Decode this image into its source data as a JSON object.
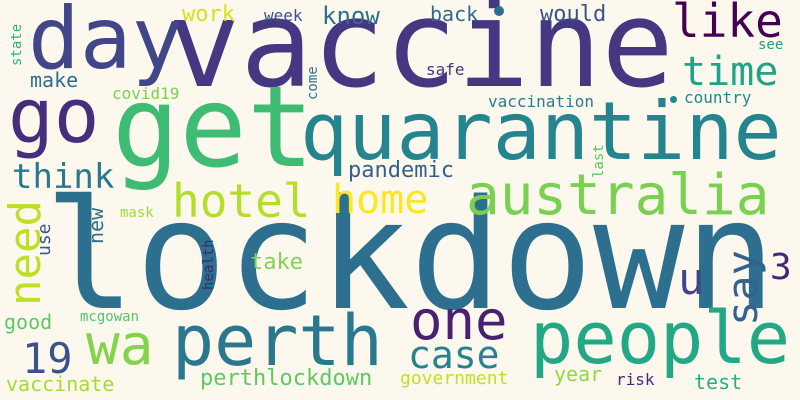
{
  "words": [
    {
      "text": "lockdown",
      "color": "#2c6f8e"
    },
    {
      "text": "vaccine",
      "color": "#453781"
    },
    {
      "text": "get",
      "color": "#3fbc73"
    },
    {
      "text": "quarantine",
      "color": "#25858e"
    },
    {
      "text": "day",
      "color": "#404688"
    },
    {
      "text": "go",
      "color": "#472d7b"
    },
    {
      "text": "australia",
      "color": "#7ad151"
    },
    {
      "text": "people",
      "color": "#22a884"
    },
    {
      "text": "perth",
      "color": "#2a788e"
    },
    {
      "text": "wa",
      "color": "#84d44b"
    },
    {
      "text": "one",
      "color": "#482173"
    },
    {
      "text": "hotel",
      "color": "#b5de2b"
    },
    {
      "text": "home",
      "color": "#fde725"
    },
    {
      "text": "like",
      "color": "#440154"
    },
    {
      "text": "time",
      "color": "#20a386"
    },
    {
      "text": "need",
      "color": "#bddf26"
    },
    {
      "text": "say",
      "color": "#33638d"
    },
    {
      "text": "case",
      "color": "#26828e"
    },
    {
      "text": "think",
      "color": "#2a788e"
    },
    {
      "text": "19",
      "color": "#3b528b"
    },
    {
      "text": "u",
      "color": "#414487"
    },
    {
      "text": "3",
      "color": "#482677"
    },
    {
      "text": "know",
      "color": "#2d708e"
    },
    {
      "text": "work",
      "color": "#d8e219"
    },
    {
      "text": "would",
      "color": "#39568c"
    },
    {
      "text": "back",
      "color": "#31688e"
    },
    {
      "text": "pandemic",
      "color": "#355f8d"
    },
    {
      "text": "perthlockdown",
      "color": "#5ec962"
    },
    {
      "text": "take",
      "color": "#7fd34e"
    },
    {
      "text": "make",
      "color": "#2f6b8e"
    },
    {
      "text": "week",
      "color": "#3b528b"
    },
    {
      "text": "good",
      "color": "#5ec962"
    },
    {
      "text": "vaccinate",
      "color": "#a5db36"
    },
    {
      "text": "government",
      "color": "#c2df23"
    },
    {
      "text": "year",
      "color": "#8fd744"
    },
    {
      "text": "test",
      "color": "#29af7f"
    },
    {
      "text": "risk",
      "color": "#482878"
    },
    {
      "text": "safe",
      "color": "#46337e"
    },
    {
      "text": "vaccination",
      "color": "#287d8e"
    },
    {
      "text": "country",
      "color": "#24868e"
    },
    {
      "text": "covid19",
      "color": "#7ad151"
    },
    {
      "text": "mcgowan",
      "color": "#52c569"
    },
    {
      "text": "mask",
      "color": "#a0da39"
    },
    {
      "text": "new",
      "color": "#2d708e"
    },
    {
      "text": "use",
      "color": "#38588c"
    },
    {
      "text": "health",
      "color": "#482475"
    },
    {
      "text": "come",
      "color": "#2c728e"
    },
    {
      "text": "last",
      "color": "#56c667"
    },
    {
      "text": "state",
      "color": "#2fb47c"
    },
    {
      "text": "see",
      "color": "#1f9e89"
    }
  ]
}
